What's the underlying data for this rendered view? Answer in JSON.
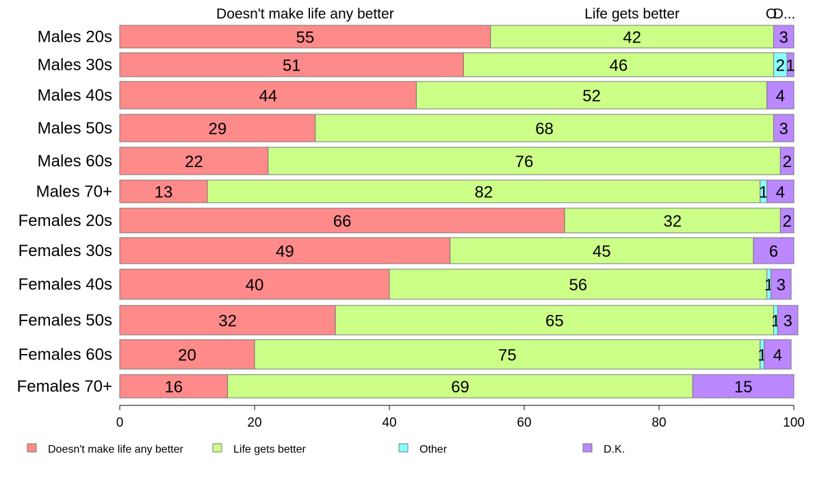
{
  "chart_data": {
    "type": "bar",
    "orientation": "horizontal",
    "stacked": true,
    "xlim": [
      0,
      100
    ],
    "x_ticks": [
      "0",
      "20",
      "40",
      "60",
      "80",
      "100"
    ],
    "top_labels": [
      "Doesn't make life any better",
      "Life gets better",
      "Other",
      "D.K."
    ],
    "top_labels_display": [
      "Doesn't make life any better",
      "Life gets better",
      "O",
      "D..."
    ],
    "categories": [
      "Males 20s",
      "Males 30s",
      "Males 40s",
      "Males 50s",
      "Males 60s",
      "Males 70+",
      "Females 20s",
      "Females 30s",
      "Females 40s",
      "Females 50s",
      "Females 60s",
      "Females 70+"
    ],
    "series": [
      {
        "name": "Doesn't make life any better",
        "color": "#FF8A8A",
        "values": [
          55,
          51,
          44,
          29,
          22,
          13,
          66,
          49,
          40,
          32,
          20,
          16
        ],
        "labels": [
          "55",
          "51",
          "44",
          "29",
          "22",
          "13",
          "66",
          "49",
          "40",
          "32",
          "20",
          "16"
        ]
      },
      {
        "name": "Life gets better",
        "color": "#CCFF88",
        "values": [
          42,
          46,
          52,
          68,
          76,
          82,
          32,
          45,
          56,
          65,
          75,
          69
        ],
        "labels": [
          "42",
          "46",
          "52",
          "68",
          "76",
          "82",
          "32",
          "45",
          "56",
          "65",
          "75",
          "69"
        ]
      },
      {
        "name": "Other",
        "color": "#88FFFF",
        "values": [
          0,
          2,
          0,
          0,
          0,
          1,
          0,
          0,
          0.6,
          0.6,
          0.6,
          0
        ],
        "labels": [
          "",
          "2",
          "",
          "",
          "",
          "1",
          "",
          "",
          "1",
          "1",
          "1",
          ""
        ]
      },
      {
        "name": "D.K.",
        "color": "#BB88FF",
        "values": [
          3,
          1,
          4,
          3,
          2,
          4,
          2,
          6,
          3,
          3,
          4,
          15
        ],
        "labels": [
          "3",
          "1",
          "4",
          "3",
          "2",
          "4",
          "2",
          "6",
          "3",
          "3",
          "4",
          "15"
        ]
      }
    ],
    "legend": {
      "position": "bottom",
      "items": [
        "Doesn't make life any better",
        "Life gets better",
        "Other",
        "D.K."
      ]
    },
    "grid": false
  }
}
